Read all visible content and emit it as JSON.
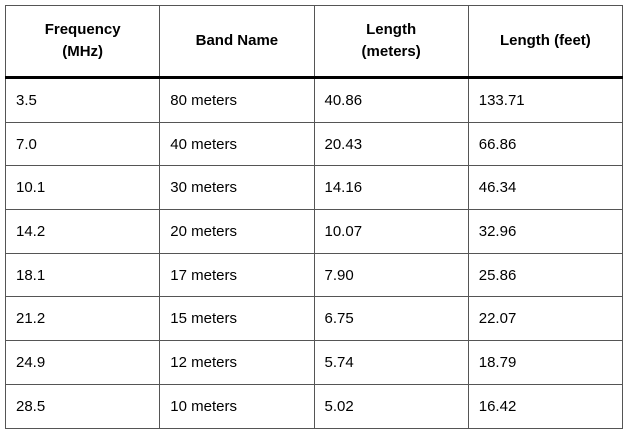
{
  "table": {
    "header": [
      "Frequency (MHz)",
      "Band Name",
      "Length (meters)",
      "Length (feet)"
    ],
    "rows": [
      [
        "3.5",
        "80 meters",
        "40.86",
        "133.71"
      ],
      [
        "7.0",
        "40 meters",
        "20.43",
        "66.86"
      ],
      [
        "10.1",
        "30 meters",
        "14.16",
        "46.34"
      ],
      [
        "14.2",
        "20 meters",
        "10.07",
        "32.96"
      ],
      [
        "18.1",
        "17 meters",
        "7.90",
        "25.86"
      ],
      [
        "21.2",
        "15 meters",
        "6.75",
        "22.07"
      ],
      [
        "24.9",
        "12 meters",
        "5.74",
        "18.79"
      ],
      [
        "28.5",
        "10 meters",
        "5.02",
        "16.42"
      ]
    ]
  }
}
